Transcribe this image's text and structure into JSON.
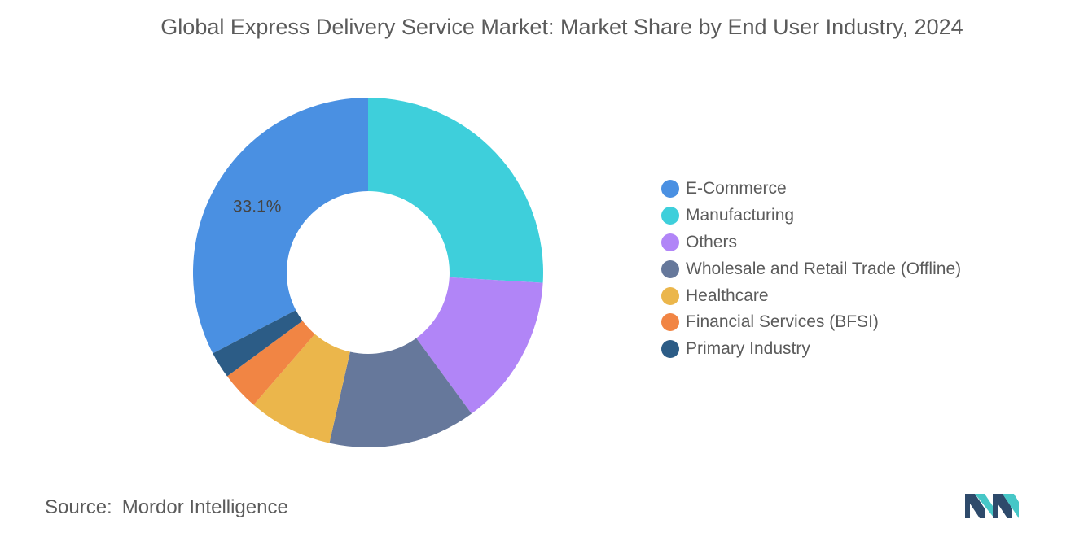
{
  "chart_data": {
    "type": "pie",
    "donut": true,
    "title": "Global Express Delivery Service Market: Market Share by End User Industry, 2024",
    "categories": [
      "E-Commerce",
      "Manufacturing",
      "Others",
      "Wholesale and Retail Trade (Offline)",
      "Healthcare",
      "Financial Services (BFSI)",
      "Primary Industry"
    ],
    "values": [
      33.1,
      26.3,
      14.2,
      13.8,
      7.9,
      3.6,
      2.5
    ],
    "colors": [
      "#4a90e2",
      "#3ecfdb",
      "#b185f7",
      "#66789b",
      "#ebb64b",
      "#f18544",
      "#2c5c86"
    ],
    "data_labels": [
      {
        "category": "E-Commerce",
        "text": "33.1%"
      }
    ],
    "legend_position": "right"
  },
  "source": {
    "label": "Source:",
    "value": "Mordor Intelligence"
  },
  "logo": {
    "icon": "mordor-intelligence-logo-icon",
    "colors": [
      "#2e4a6b",
      "#46c7c7"
    ]
  }
}
